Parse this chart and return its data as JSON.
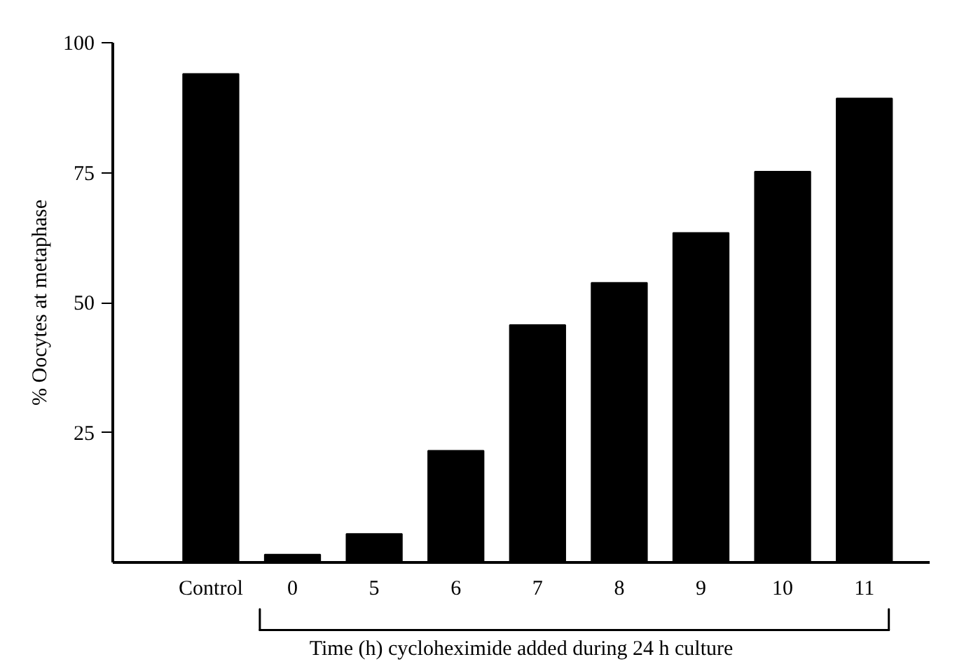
{
  "chart_data": {
    "type": "bar",
    "categories": [
      "Control",
      "0",
      "5",
      "6",
      "7",
      "8",
      "9",
      "10",
      "11"
    ],
    "values": [
      94,
      1.5,
      5.5,
      21.5,
      45.7,
      53.8,
      63.4,
      75.2,
      89.3
    ],
    "color": "#000000",
    "xlabel": "Time (h) cycloheximide added during 24 h culture",
    "ylabel": "% Oocytes at metaphase",
    "ylim": [
      0,
      100
    ],
    "yticks": [
      25,
      50,
      75,
      100
    ],
    "grid": false
  }
}
